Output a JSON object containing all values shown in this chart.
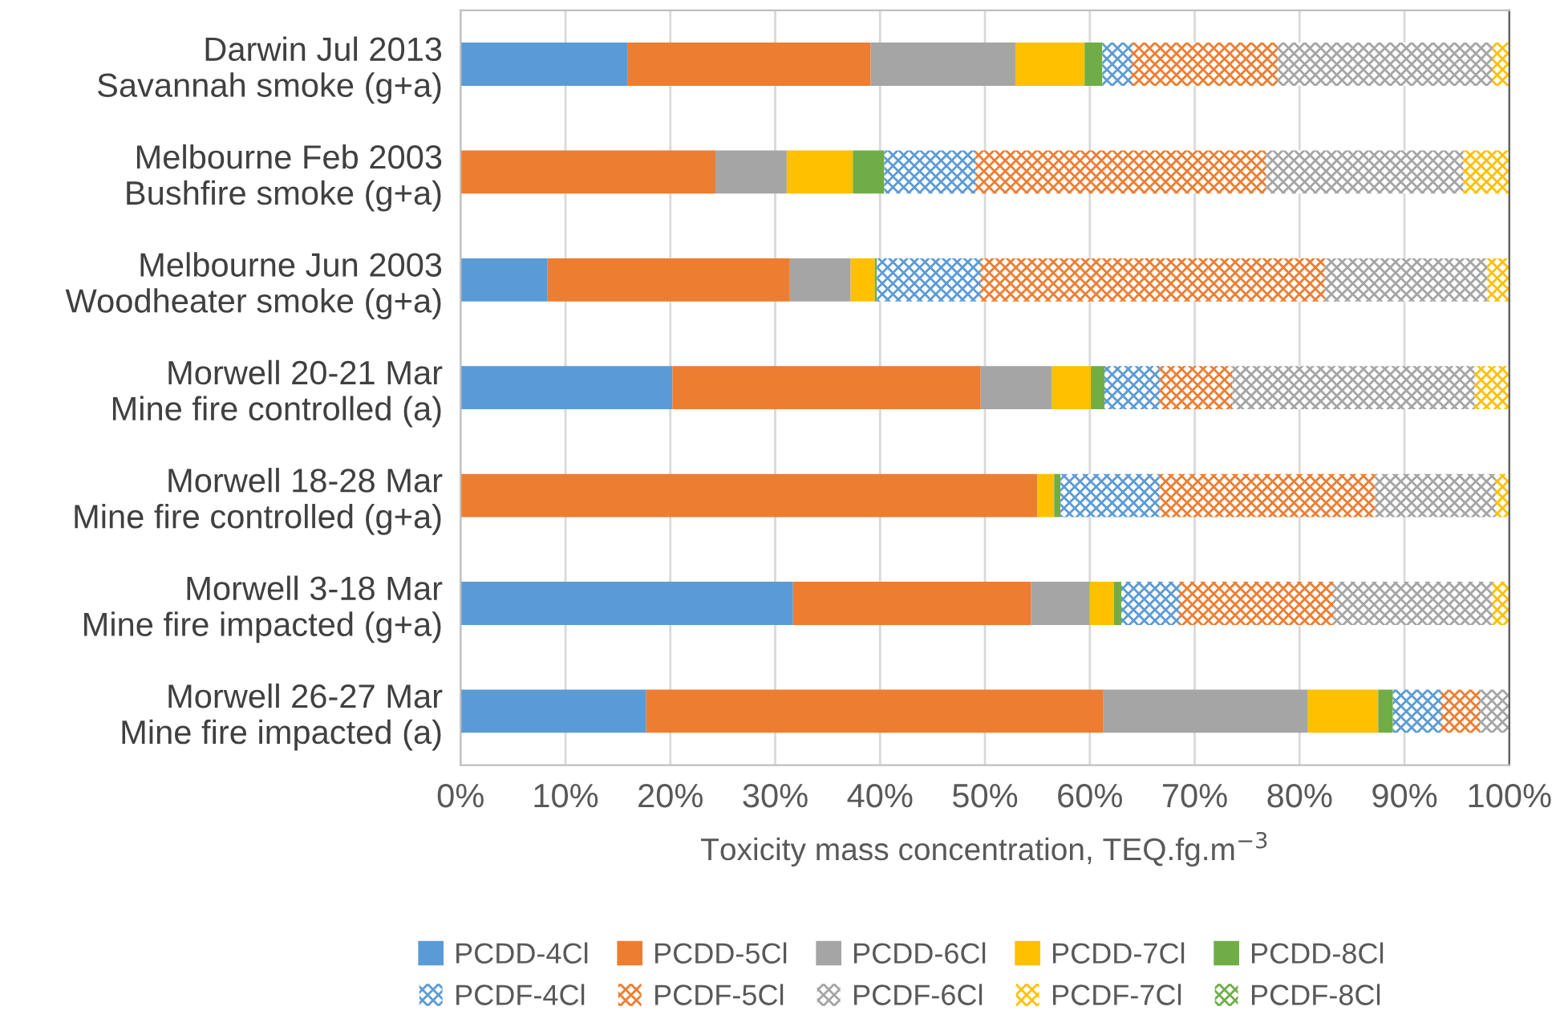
{
  "chart_data": {
    "type": "bar",
    "orientation": "horizontal",
    "stacked": true,
    "categories": [
      "Darwin Jul 2013\nSavannah smoke (g+a)",
      "Melbourne Feb 2003\nBushfire smoke (g+a)",
      "Melbourne Jun 2003\nWoodheater smoke (g+a)",
      "Morwell 20-21 Mar\nMine fire controlled (a)",
      "Morwell 18-28 Mar\nMine fire controlled (g+a)",
      "Morwell 3-18 Mar\nMine fire impacted (g+a)",
      "Morwell 26-27 Mar\nMine fire impacted (a)"
    ],
    "series": [
      {
        "name": "PCDD-4Cl",
        "color": "#5b9bd5",
        "values": [
          15.9,
          0,
          8.3,
          20.2,
          0,
          31.7,
          17.7
        ]
      },
      {
        "name": "PCDD-5Cl",
        "color": "#ed7d31",
        "values": [
          23.2,
          24.3,
          23.1,
          29.4,
          55.0,
          22.7,
          43.6
        ]
      },
      {
        "name": "PCDD-6Cl",
        "color": "#a5a5a5",
        "values": [
          13.8,
          6.8,
          5.8,
          6.8,
          0,
          5.6,
          19.5
        ]
      },
      {
        "name": "PCDD-7Cl",
        "color": "#ffc000",
        "values": [
          6.6,
          6.3,
          2.3,
          3.7,
          1.6,
          2.3,
          6.7
        ]
      },
      {
        "name": "PCDD-8Cl",
        "color": "#70ad47",
        "values": [
          1.7,
          3.0,
          0.2,
          1.3,
          0.6,
          0.7,
          1.4
        ]
      },
      {
        "name": "PCDF-4Cl",
        "color": "#5b9bd5",
        "values": [
          2.8,
          8.7,
          9.9,
          5.2,
          9.4,
          5.5,
          4.6
        ]
      },
      {
        "name": "PCDF-5Cl",
        "color": "#ed7d31",
        "values": [
          13.9,
          27.7,
          32.8,
          7.0,
          20.6,
          14.7,
          3.7
        ]
      },
      {
        "name": "PCDF-6Cl",
        "color": "#a5a5a5",
        "values": [
          20.5,
          18.8,
          15.5,
          23.1,
          11.5,
          15.2,
          2.8
        ]
      },
      {
        "name": "PCDF-7Cl",
        "color": "#ffc000",
        "values": [
          1.6,
          4.4,
          2.1,
          3.3,
          1.3,
          1.6,
          0
        ]
      },
      {
        "name": "PCDF-8Cl",
        "color": "#70ad47",
        "values": [
          0,
          0,
          0,
          0,
          0,
          0,
          0
        ]
      }
    ],
    "xlabel": "Toxicity mass concentration, TEQ.fg.m$^{−3}$",
    "xlim": [
      0,
      100
    ],
    "xticks": [
      {
        "value": 0,
        "label": "0%"
      },
      {
        "value": 10,
        "label": "10%"
      },
      {
        "value": 20,
        "label": "20%"
      },
      {
        "value": 30,
        "label": "30%"
      },
      {
        "value": 40,
        "label": "40%"
      },
      {
        "value": 50,
        "label": "50%"
      },
      {
        "value": 60,
        "label": "60%"
      },
      {
        "value": 70,
        "label": "70%"
      },
      {
        "value": 80,
        "label": "80%"
      },
      {
        "value": 90,
        "label": "90%"
      },
      {
        "value": 100,
        "label": "100%"
      }
    ],
    "grid": "x",
    "legend": "bottom"
  }
}
